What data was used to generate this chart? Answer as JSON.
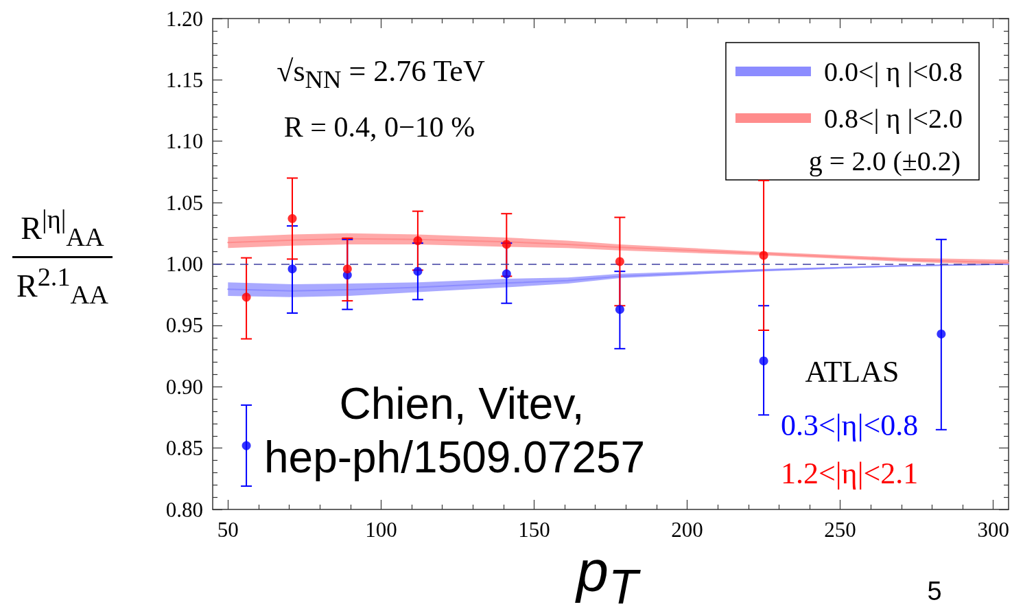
{
  "chart_data": {
    "type": "scatter",
    "xlabel": "p$_{T}$",
    "ylabel": "R$^{|η|}$$_{AA}$\nR$^{2.1}$$_{AA}$",
    "legend_title": "g = 2.0 (±0.2)",
    "legend": "top right",
    "grid": false,
    "marker": "circle",
    "annotations": [
      "√s$_{NN}$ = 2.76 TeV",
      "R = 0.4,  0−10 %",
      "Chien, Vitev,",
      "hep-ph/1509.07257",
      "ATLAS",
      "5"
    ],
    "xlim": [
      45,
      305
    ],
    "ylim": [
      0.8,
      1.2
    ],
    "xticks": [
      50,
      {
        "value": 60,
        "label": null
      },
      {
        "value": 70,
        "label": null
      },
      {
        "value": 80,
        "label": null
      },
      {
        "value": 90,
        "label": null
      },
      100,
      {
        "value": 110,
        "label": null
      },
      {
        "value": 120,
        "label": null
      },
      {
        "value": 130,
        "label": null
      },
      {
        "value": 140,
        "label": null
      },
      150,
      {
        "value": 160,
        "label": null
      },
      {
        "value": 170,
        "label": null
      },
      {
        "value": 180,
        "label": null
      },
      {
        "value": 190,
        "label": null
      },
      200,
      {
        "value": 210,
        "label": null
      },
      {
        "value": 220,
        "label": null
      },
      {
        "value": 230,
        "label": null
      },
      {
        "value": 240,
        "label": null
      },
      250,
      {
        "value": 260,
        "label": null
      },
      {
        "value": 270,
        "label": null
      },
      {
        "value": 280,
        "label": null
      },
      {
        "value": 290,
        "label": null
      },
      300
    ],
    "yticks": [
      {
        "value": 0.8,
        "label": "0.80"
      },
      {
        "value": 0.81,
        "label": null
      },
      {
        "value": 0.82,
        "label": null
      },
      {
        "value": 0.83,
        "label": null
      },
      {
        "value": 0.84,
        "label": null
      },
      0.85,
      {
        "value": 0.86,
        "label": null
      },
      {
        "value": 0.87,
        "label": null
      },
      {
        "value": 0.88,
        "label": null
      },
      {
        "value": 0.89,
        "label": null
      },
      {
        "value": 0.9,
        "label": "0.90"
      },
      {
        "value": 0.91,
        "label": null
      },
      {
        "value": 0.92,
        "label": null
      },
      {
        "value": 0.93,
        "label": null
      },
      {
        "value": 0.94,
        "label": null
      },
      0.95,
      {
        "value": 0.96,
        "label": null
      },
      {
        "value": 0.97,
        "label": null
      },
      {
        "value": 0.98,
        "label": null
      },
      {
        "value": 0.99,
        "label": null
      },
      {
        "value": 1.0,
        "label": "1.00"
      },
      {
        "value": 1.01,
        "label": null
      },
      {
        "value": 1.02,
        "label": null
      },
      {
        "value": 1.03,
        "label": null
      },
      {
        "value": 1.04,
        "label": null
      },
      1.05,
      {
        "value": 1.06,
        "label": null
      },
      {
        "value": 1.07,
        "label": null
      },
      {
        "value": 1.08,
        "label": null
      },
      {
        "value": 1.09,
        "label": null
      },
      {
        "value": 1.1,
        "label": "1.10"
      },
      {
        "value": 1.11,
        "label": null
      },
      {
        "value": 1.12,
        "label": null
      },
      {
        "value": 1.13,
        "label": null
      },
      {
        "value": 1.14,
        "label": null
      },
      1.15,
      {
        "value": 1.16,
        "label": null
      },
      {
        "value": 1.17,
        "label": null
      },
      {
        "value": 1.18,
        "label": null
      },
      {
        "value": 1.19,
        "label": null
      },
      {
        "value": 1.2,
        "label": "1.20"
      }
    ],
    "ref_lines": [
      {
        "axis": "y",
        "value": 1.0,
        "color": "#3c3ca0",
        "line_style": "dashed"
      }
    ],
    "series": [
      {
        "name": "0.0<| η |<0.8",
        "type": "line",
        "marker": "none",
        "color": "#8c8cff",
        "x": [
          50,
          71,
          89,
          112,
          141,
          161,
          178,
          225,
          270,
          305
        ],
        "values": [
          0.9795,
          0.978,
          0.979,
          0.981,
          0.9845,
          0.9865,
          0.99,
          0.995,
          0.9985,
          0.9999
        ],
        "lower": [
          0.974,
          0.973,
          0.974,
          0.977,
          0.981,
          0.984,
          0.9885,
          0.994,
          0.998,
          0.9995
        ],
        "upper": [
          0.985,
          0.9835,
          0.984,
          0.985,
          0.988,
          0.989,
          0.992,
          0.996,
          0.999,
          1.0003
        ]
      },
      {
        "name": "0.8<| η |<2.0",
        "type": "line",
        "marker": "none",
        "color": "#ff8c8c",
        "x": [
          50,
          71,
          89,
          112,
          141,
          161,
          178,
          225,
          270,
          305
        ],
        "values": [
          1.0175,
          1.0195,
          1.0205,
          1.02,
          1.018,
          1.016,
          1.0135,
          1.0085,
          1.0035,
          1.001
        ],
        "lower": [
          1.013,
          1.015,
          1.016,
          1.016,
          1.014,
          1.013,
          1.011,
          1.007,
          1.002,
          0.999
        ],
        "upper": [
          1.022,
          1.024,
          1.025,
          1.024,
          1.0215,
          1.019,
          1.016,
          1.01,
          1.005,
          1.0035
        ]
      },
      {
        "name": "0.3<|η|<0.8",
        "color": "#0000ff",
        "x": [
          56,
          71,
          89,
          112,
          141,
          178,
          225,
          283
        ],
        "values": [
          0.852,
          0.996,
          0.991,
          0.994,
          0.992,
          0.963,
          0.921,
          0.943
        ],
        "errors": [
          [
            0.819,
            0.885
          ],
          [
            0.96,
            1.031
          ],
          [
            0.963,
            1.02
          ],
          [
            0.971,
            1.017
          ],
          [
            0.968,
            1.017
          ],
          [
            0.931,
            0.994
          ],
          [
            0.877,
            0.966
          ],
          [
            0.865,
            1.02
          ]
        ]
      },
      {
        "name": "1.2<|η|<2.1",
        "color": "#ff0000",
        "x": [
          56,
          71,
          89,
          112,
          141,
          178,
          225
        ],
        "values": [
          0.973,
          1.037,
          0.996,
          1.019,
          1.016,
          1.002,
          1.007
        ],
        "errors": [
          [
            0.939,
            1.005
          ],
          [
            1.004,
            1.07
          ],
          [
            0.97,
            1.021
          ],
          [
            0.995,
            1.043
          ],
          [
            0.99,
            1.041
          ],
          [
            0.966,
            1.038
          ],
          [
            0.946,
            1.068
          ]
        ]
      }
    ]
  }
}
